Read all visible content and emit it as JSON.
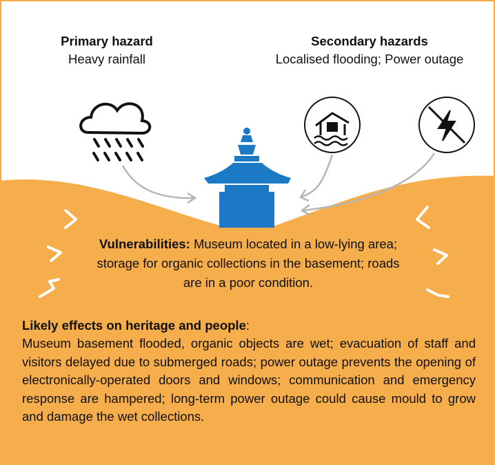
{
  "primary_hazard": {
    "title": "Primary hazard",
    "text": "Heavy rainfall"
  },
  "secondary_hazards": {
    "title": "Secondary hazards",
    "text": "Localised flooding; Power outage"
  },
  "vulnerabilities": {
    "label": "Vulnerabilities:",
    "text": "Museum located in a low-lying area; storage for organic collections in the basement; roads are in a poor condition."
  },
  "effects": {
    "label": "Likely effects on heritage and people",
    "label_end": ":",
    "text": "Museum basement flooded, organic objects are wet; evacuation of staff and visitors delayed due to submerged roads; power outage prevents the opening of electronically-operated doors and windows; communication and emergency response are hampered; long-term power outage could cause mould to grow and damage the wet collections."
  }
}
